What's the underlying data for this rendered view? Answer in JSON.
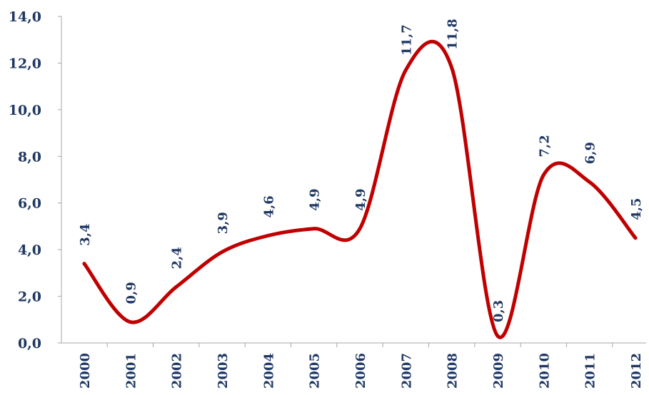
{
  "chart_data": {
    "type": "line",
    "title": "",
    "xlabel": "",
    "ylabel": "",
    "categories": [
      "2000",
      "2001",
      "2002",
      "2003",
      "2004",
      "2005",
      "2006",
      "2007",
      "2008",
      "2009",
      "2010",
      "2011",
      "2012"
    ],
    "series": [
      {
        "values": [
          3.4,
          0.9,
          2.4,
          3.9,
          4.6,
          4.9,
          4.9,
          11.7,
          11.8,
          0.3,
          7.2,
          6.9,
          4.5
        ],
        "labels": [
          "3,4",
          "0,9",
          "2,4",
          "3,9",
          "4,6",
          "4,9",
          "4,9",
          "11,7",
          "11,8",
          "0,3",
          "7,2",
          "6,9",
          "4,5"
        ]
      }
    ],
    "ylim": [
      0,
      14
    ],
    "yticks": [
      0,
      2,
      4,
      6,
      8,
      10,
      12,
      14
    ],
    "ytick_labels": [
      "0,0",
      "2,0",
      "4,0",
      "6,0",
      "8,0",
      "10,0",
      "12,0",
      "14,0"
    ],
    "line_color": "#c00000",
    "label_color": "#1f3864",
    "axis_color": "#a6a6a6",
    "smooth": true,
    "grid": false,
    "legend": "none"
  }
}
